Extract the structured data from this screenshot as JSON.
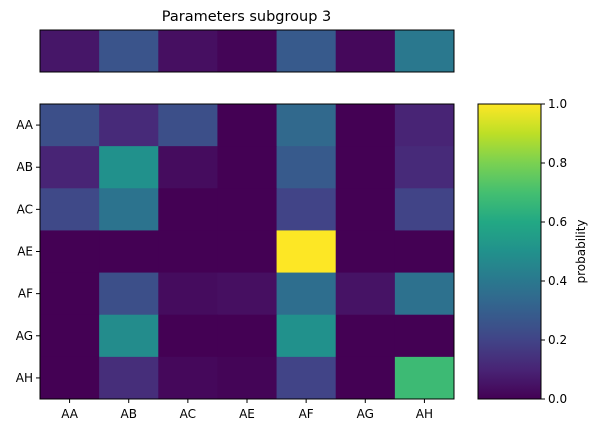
{
  "chart_data": {
    "type": "heatmap",
    "title": "Parameters subgroup 3",
    "categories": [
      "AA",
      "AB",
      "AC",
      "AE",
      "AF",
      "AG",
      "AH"
    ],
    "row_labels": [
      "AA",
      "AB",
      "AC",
      "AE",
      "AF",
      "AG",
      "AH"
    ],
    "col_labels": [
      "AA",
      "AB",
      "AC",
      "AE",
      "AF",
      "AG",
      "AH"
    ],
    "top_row": [
      0.06,
      0.26,
      0.04,
      0.01,
      0.28,
      0.02,
      0.4
    ],
    "matrix": [
      [
        0.24,
        0.12,
        0.24,
        0.0,
        0.34,
        0.0,
        0.1
      ],
      [
        0.1,
        0.5,
        0.03,
        0.0,
        0.28,
        0.0,
        0.12
      ],
      [
        0.22,
        0.38,
        0.0,
        0.0,
        0.2,
        0.0,
        0.2
      ],
      [
        0.0,
        0.0,
        0.0,
        0.0,
        1.0,
        0.0,
        0.0
      ],
      [
        0.0,
        0.24,
        0.03,
        0.04,
        0.36,
        0.05,
        0.37
      ],
      [
        0.0,
        0.48,
        0.0,
        0.0,
        0.5,
        0.0,
        0.0
      ],
      [
        0.0,
        0.13,
        0.02,
        0.01,
        0.2,
        0.0,
        0.68
      ]
    ],
    "colorbar": {
      "label": "probability",
      "range": [
        0.0,
        1.0
      ],
      "ticks": [
        "0.0",
        "0.2",
        "0.4",
        "0.6",
        "0.8",
        "1.0"
      ],
      "colormap": "viridis"
    }
  }
}
